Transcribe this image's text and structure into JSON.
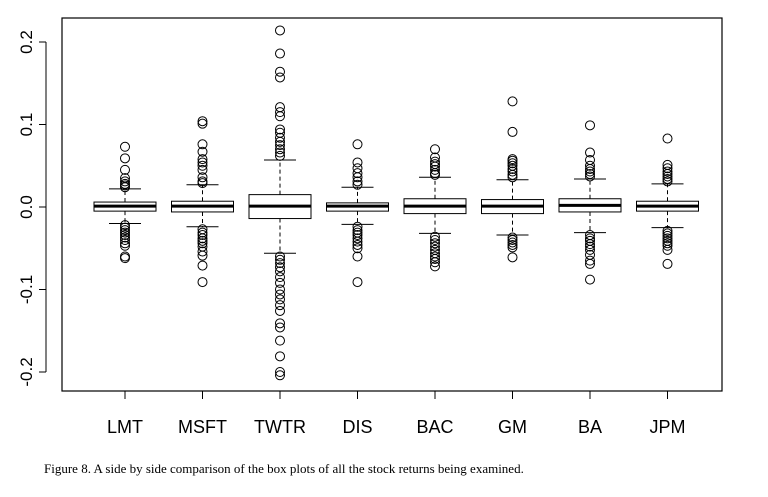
{
  "caption": "Figure 8. A side by side comparison of the box plots of all the stock returns being examined.",
  "chart_data": {
    "type": "boxplot",
    "title": "",
    "xlabel": "",
    "ylabel": "",
    "ylim": [
      -0.21,
      0.23
    ],
    "yticks": [
      -0.2,
      -0.1,
      0.0,
      0.1,
      0.2
    ],
    "ytick_labels": [
      "-0.2",
      "-0.1",
      "0.0",
      "0.1",
      "0.2"
    ],
    "categories": [
      "LMT",
      "MSFT",
      "TWTR",
      "DIS",
      "BAC",
      "GM",
      "BA",
      "JPM"
    ],
    "boxes": [
      {
        "name": "LMT",
        "whisker_low": -0.02,
        "q1": -0.005,
        "median": 0.001,
        "q3": 0.006,
        "whisker_high": 0.022,
        "outliers": [
          0.073,
          0.059,
          0.045,
          0.035,
          0.031,
          0.028,
          0.026,
          0.024,
          -0.022,
          -0.025,
          -0.028,
          -0.031,
          -0.034,
          -0.037,
          -0.04,
          -0.044,
          -0.047,
          -0.06,
          -0.062
        ]
      },
      {
        "name": "MSFT",
        "whisker_low": -0.024,
        "q1": -0.006,
        "median": 0.001,
        "q3": 0.007,
        "whisker_high": 0.027,
        "outliers": [
          0.104,
          0.101,
          0.076,
          0.067,
          0.058,
          0.054,
          0.05,
          0.045,
          0.036,
          0.031,
          0.029,
          -0.027,
          -0.031,
          -0.034,
          -0.038,
          -0.041,
          -0.044,
          -0.048,
          -0.054,
          -0.059,
          -0.071,
          -0.091
        ]
      },
      {
        "name": "TWTR",
        "whisker_low": -0.056,
        "q1": -0.014,
        "median": 0.001,
        "q3": 0.015,
        "whisker_high": 0.057,
        "outliers": [
          0.214,
          0.186,
          0.164,
          0.157,
          0.121,
          0.115,
          0.11,
          0.094,
          0.09,
          0.084,
          0.079,
          0.075,
          0.07,
          0.066,
          0.062,
          -0.06,
          -0.064,
          -0.068,
          -0.073,
          -0.078,
          -0.085,
          -0.092,
          -0.1,
          -0.106,
          -0.112,
          -0.119,
          -0.126,
          -0.141,
          -0.146,
          -0.162,
          -0.181,
          -0.2,
          -0.204
        ]
      },
      {
        "name": "DIS",
        "whisker_low": -0.021,
        "q1": -0.005,
        "median": 0.001,
        "q3": 0.005,
        "whisker_high": 0.024,
        "outliers": [
          0.076,
          0.054,
          0.047,
          0.041,
          0.036,
          0.031,
          0.027,
          -0.024,
          -0.028,
          -0.031,
          -0.034,
          -0.038,
          -0.042,
          -0.046,
          -0.05,
          -0.06,
          -0.091
        ]
      },
      {
        "name": "BAC",
        "whisker_low": -0.032,
        "q1": -0.008,
        "median": 0.001,
        "q3": 0.01,
        "whisker_high": 0.036,
        "outliers": [
          0.07,
          0.06,
          0.055,
          0.052,
          0.049,
          0.045,
          0.041,
          0.039,
          -0.036,
          -0.04,
          -0.044,
          -0.048,
          -0.052,
          -0.056,
          -0.06,
          -0.063,
          -0.067,
          -0.072
        ]
      },
      {
        "name": "GM",
        "whisker_low": -0.034,
        "q1": -0.008,
        "median": 0.001,
        "q3": 0.009,
        "whisker_high": 0.033,
        "outliers": [
          0.128,
          0.091,
          0.058,
          0.056,
          0.053,
          0.05,
          0.046,
          0.043,
          0.039,
          0.036,
          -0.037,
          -0.04,
          -0.043,
          -0.046,
          -0.049,
          -0.061
        ]
      },
      {
        "name": "BA",
        "whisker_low": -0.031,
        "q1": -0.006,
        "median": 0.002,
        "q3": 0.01,
        "whisker_high": 0.034,
        "outliers": [
          0.099,
          0.066,
          0.057,
          0.05,
          0.046,
          0.043,
          0.04,
          0.037,
          -0.034,
          -0.038,
          -0.041,
          -0.045,
          -0.048,
          -0.052,
          -0.058,
          -0.065,
          -0.069,
          -0.088
        ]
      },
      {
        "name": "JPM",
        "whisker_low": -0.025,
        "q1": -0.005,
        "median": 0.001,
        "q3": 0.007,
        "whisker_high": 0.028,
        "outliers": [
          0.083,
          0.051,
          0.047,
          0.043,
          0.04,
          0.037,
          0.034,
          0.031,
          -0.029,
          -0.032,
          -0.035,
          -0.038,
          -0.041,
          -0.044,
          -0.047,
          -0.052,
          -0.069
        ]
      }
    ]
  }
}
